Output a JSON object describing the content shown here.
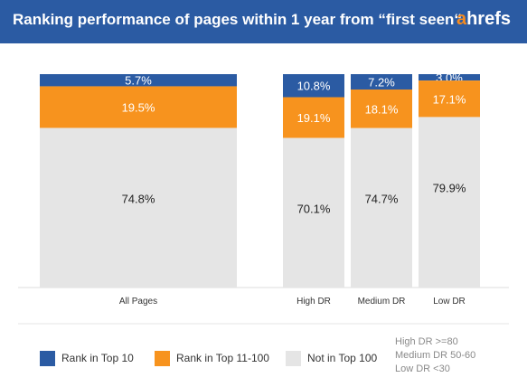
{
  "header": {
    "title": "Ranking performance of pages within 1 year from “first seen“",
    "logo_first": "a",
    "logo_rest": "hrefs"
  },
  "colors": {
    "header_bg": "#2b5ba3",
    "top10": "#2b5ba3",
    "top11_100": "#f7931e",
    "not_in_top100": "#e5e5e5",
    "logo_accent": "#f68b1f"
  },
  "chart_data": {
    "type": "bar",
    "stacked": true,
    "normalized": true,
    "categories": [
      "All Pages",
      "High DR",
      "Medium DR",
      "Low DR"
    ],
    "series": [
      {
        "name": "Rank in Top 10",
        "values": [
          5.7,
          10.8,
          7.2,
          3.0
        ],
        "labels": [
          "5.7%",
          "10.8%",
          "7.2%",
          "3.0%"
        ]
      },
      {
        "name": "Rank in Top 11-100",
        "values": [
          19.5,
          19.1,
          18.1,
          17.1
        ],
        "labels": [
          "19.5%",
          "19.1%",
          "18.1%",
          "17.1%"
        ]
      },
      {
        "name": "Not in Top 100",
        "values": [
          74.8,
          70.1,
          74.7,
          79.9
        ],
        "labels": [
          "74.8%",
          "70.1%",
          "74.7%",
          "79.9%"
        ]
      }
    ],
    "ylim": [
      0,
      100
    ]
  },
  "legend": [
    {
      "label": "Rank in Top 10",
      "color": "#2b5ba3"
    },
    {
      "label": "Rank in Top 11-100",
      "color": "#f7931e"
    },
    {
      "label": "Not in Top 100",
      "color": "#e5e5e5"
    }
  ],
  "note": [
    "High DR >=80",
    "Medium DR 50-60",
    "Low DR <30"
  ]
}
